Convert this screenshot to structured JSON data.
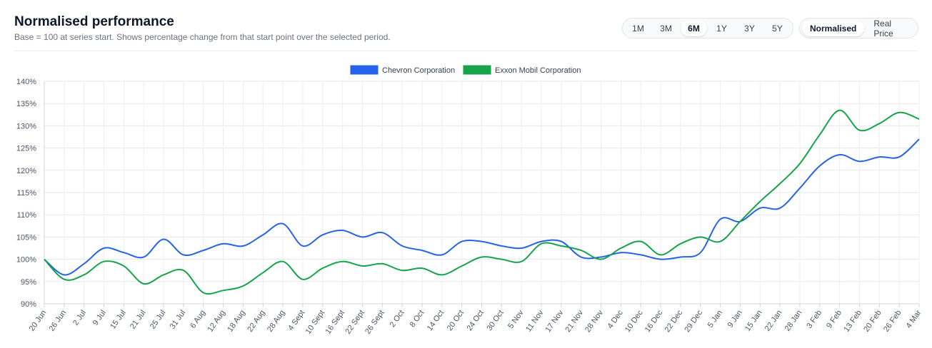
{
  "header": {
    "title": "Normalised performance",
    "subtitle": "Base = 100 at series start. Shows percentage change from that start point over the selected period."
  },
  "range_buttons": [
    {
      "label": "1M",
      "active": false
    },
    {
      "label": "3M",
      "active": false
    },
    {
      "label": "6M",
      "active": true
    },
    {
      "label": "1Y",
      "active": false
    },
    {
      "label": "3Y",
      "active": false
    },
    {
      "label": "5Y",
      "active": false
    }
  ],
  "mode_buttons": [
    {
      "label": "Normalised",
      "active": true
    },
    {
      "label": "Real Price",
      "active": false
    }
  ],
  "chart_data": {
    "type": "line",
    "title": "",
    "xlabel": "",
    "ylabel": "",
    "ylim": [
      90,
      140
    ],
    "yticks": [
      90,
      95,
      100,
      105,
      110,
      115,
      120,
      125,
      130,
      135,
      140
    ],
    "ytick_suffix": "%",
    "grid": true,
    "legend_position": "top-center",
    "x": [
      "20 Jun",
      "26 Jun",
      "2 Jul",
      "9 Jul",
      "15 Jul",
      "21 Jul",
      "25 Jul",
      "31 Jul",
      "6 Aug",
      "12 Aug",
      "18 Aug",
      "22 Aug",
      "28 Aug",
      "4 Sept",
      "10 Sept",
      "16 Sept",
      "22 Sept",
      "26 Sept",
      "2 Oct",
      "8 Oct",
      "14 Oct",
      "20 Oct",
      "24 Oct",
      "30 Oct",
      "5 Nov",
      "11 Nov",
      "17 Nov",
      "21 Nov",
      "28 Nov",
      "4 Dec",
      "10 Dec",
      "16 Dec",
      "22 Dec",
      "29 Dec",
      "5 Jan",
      "9 Jan",
      "15 Jan",
      "22 Jan",
      "28 Jan",
      "3 Feb",
      "9 Feb",
      "13 Feb",
      "20 Feb",
      "26 Feb",
      "4 Mar"
    ],
    "series": [
      {
        "name": "Chevron Corporation",
        "color": "#2563eb",
        "values": [
          100,
          96.5,
          99,
          102.5,
          101.5,
          100.5,
          104.5,
          101,
          102,
          103.5,
          103,
          105.5,
          108,
          103,
          105.5,
          106.5,
          105,
          106,
          103,
          102,
          101,
          104,
          104,
          103,
          102.5,
          104,
          104,
          100.5,
          100.5,
          101.5,
          101,
          100,
          100.5,
          101.5,
          109,
          108.5,
          111.5,
          111.5,
          116,
          121,
          123.5,
          122,
          123,
          123,
          127
        ]
      },
      {
        "name": "Exxon Mobil Corporation",
        "color": "#16a34a",
        "values": [
          100,
          95.5,
          96.5,
          99.5,
          98.5,
          94.5,
          96.5,
          97.5,
          92.5,
          93,
          94,
          97,
          99.5,
          95.5,
          98,
          99.5,
          98.5,
          99,
          97.5,
          98,
          96.5,
          98.5,
          100.5,
          100,
          99.5,
          103.5,
          103,
          102,
          100,
          102.5,
          104,
          101,
          103.5,
          105,
          104,
          108.5,
          113,
          117,
          121.5,
          128,
          133.5,
          129,
          130.5,
          133,
          131.5
        ]
      }
    ]
  }
}
